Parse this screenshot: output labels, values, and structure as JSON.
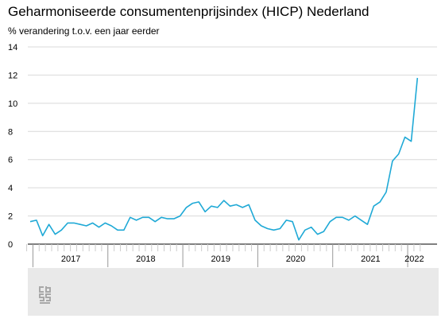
{
  "colors": {
    "line": "#1fa9d6",
    "grid": "#d9d9d9",
    "axis": "#000000",
    "footer_bg": "#e9e9e9",
    "logo": "#a8a8a8"
  },
  "icons": {
    "logo": "cbs-logo-icon"
  },
  "chart_data": {
    "type": "line",
    "title": "Geharmoniseerde consumentenprijsindex (HICP) Nederland",
    "subtitle": "% verandering t.o.v. een jaar eerder",
    "xlabel": "",
    "ylabel": "",
    "ylim": [
      0,
      14
    ],
    "yticks": [
      0,
      2,
      4,
      6,
      8,
      10,
      12,
      14
    ],
    "grid": true,
    "x_start": "2016-12",
    "x_end": "2022-02",
    "year_labels": [
      "2017",
      "2018",
      "2019",
      "2020",
      "2021",
      "2022"
    ],
    "series": [
      {
        "values": [
          1.6,
          1.7,
          0.6,
          1.4,
          0.7,
          1.0,
          1.5,
          1.5,
          1.4,
          1.3,
          1.5,
          1.2,
          1.5,
          1.3,
          1.0,
          1.0,
          1.9,
          1.7,
          1.9,
          1.9,
          1.6,
          1.9,
          1.8,
          1.8,
          2.0,
          2.6,
          2.9,
          3.0,
          2.3,
          2.7,
          2.6,
          3.1,
          2.7,
          2.8,
          2.6,
          2.8,
          1.7,
          1.3,
          1.1,
          1.0,
          1.1,
          1.7,
          1.6,
          0.3,
          1.0,
          1.2,
          0.7,
          0.9,
          1.6,
          1.9,
          1.9,
          1.7,
          2.0,
          1.7,
          1.4,
          2.7,
          3.0,
          3.7,
          5.9,
          6.4,
          7.6,
          7.3,
          11.8
        ]
      }
    ]
  }
}
